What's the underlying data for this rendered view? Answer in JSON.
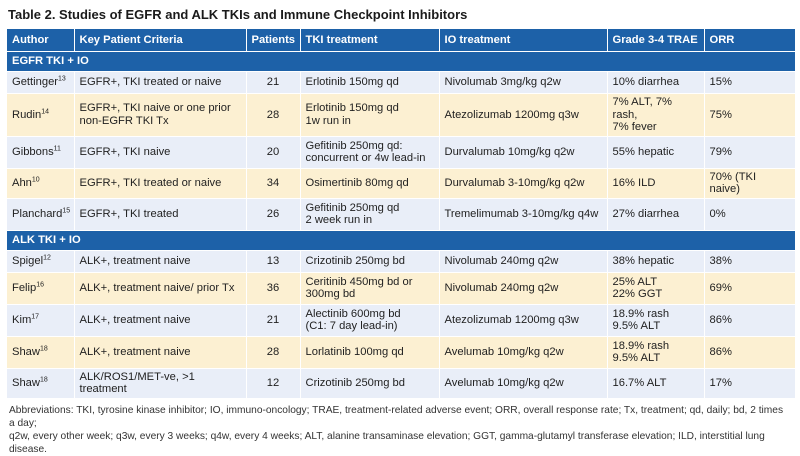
{
  "title": "Table 2. Studies of EGFR and ALK TKIs and Immune Checkpoint Inhibitors",
  "columns": [
    "Author",
    "Key Patient Criteria",
    "Patients",
    "TKI treatment",
    "IO treatment",
    "Grade 3-4 TRAE",
    "ORR"
  ],
  "sections": [
    {
      "label": "EGFR TKI + IO",
      "rows": [
        {
          "author": "Gettinger",
          "ref": "13",
          "criteria": [
            "EGFR+, TKI treated or naive"
          ],
          "patients": "21",
          "tki": [
            "Erlotinib 150mg qd"
          ],
          "io": "Nivolumab 3mg/kg q2w",
          "trae": [
            "10% diarrhea"
          ],
          "orr": "15%"
        },
        {
          "author": "Rudin",
          "ref": "14",
          "criteria": [
            "EGFR+, TKI naive or one prior",
            "non-EGFR TKI Tx"
          ],
          "patients": "28",
          "tki": [
            "Erlotinib 150mg qd",
            "1w run in"
          ],
          "io": "Atezolizumab 1200mg q3w",
          "trae": [
            "7% ALT, 7% rash,",
            "7% fever"
          ],
          "orr": "75%"
        },
        {
          "author": "Gibbons",
          "ref": "11",
          "criteria": [
            "EGFR+, TKI naive"
          ],
          "patients": "20",
          "tki": [
            "Gefitinib 250mg qd:",
            "concurrent or 4w lead-in"
          ],
          "io": "Durvalumab 10mg/kg q2w",
          "trae": [
            "55% hepatic"
          ],
          "orr": "79%"
        },
        {
          "author": "Ahn",
          "ref": "10",
          "criteria": [
            "EGFR+, TKI treated or naive"
          ],
          "patients": "34",
          "tki": [
            "Osimertinib 80mg qd"
          ],
          "io": "Durvalumab 3-10mg/kg q2w",
          "trae": [
            "16% ILD"
          ],
          "orr": "70% (TKI naive)"
        },
        {
          "author": "Planchard",
          "ref": "15",
          "criteria": [
            "EGFR+, TKI treated"
          ],
          "patients": "26",
          "tki": [
            "Gefitinib 250mg qd",
            "2 week run in"
          ],
          "io": "Tremelimumab 3-10mg/kg q4w",
          "trae": [
            "27% diarrhea"
          ],
          "orr": "0%"
        }
      ]
    },
    {
      "label": "ALK TKI + IO",
      "rows": [
        {
          "author": "Spigel",
          "ref": "12",
          "criteria": [
            "ALK+, treatment naive"
          ],
          "patients": "13",
          "tki": [
            "Crizotinib 250mg bd"
          ],
          "io": "Nivolumab 240mg q2w",
          "trae": [
            "38% hepatic"
          ],
          "orr": "38%"
        },
        {
          "author": "Felip",
          "ref": "16",
          "criteria": [
            "ALK+, treatment naive/ prior Tx"
          ],
          "patients": "36",
          "tki": [
            "Ceritinib 450mg bd or",
            "300mg bd"
          ],
          "io": "Nivolumab 240mg q2w",
          "trae": [
            "25% ALT",
            "22% GGT"
          ],
          "orr": "69%"
        },
        {
          "author": "Kim",
          "ref": "17",
          "criteria": [
            "ALK+, treatment naive"
          ],
          "patients": "21",
          "tki": [
            "Alectinib 600mg bd",
            "(C1: 7 day lead-in)"
          ],
          "io": "Atezolizumab 1200mg q3w",
          "trae": [
            "18.9% rash",
            "9.5% ALT"
          ],
          "orr": "86%"
        },
        {
          "author": "Shaw",
          "ref": "18",
          "criteria": [
            "ALK+, treatment naive"
          ],
          "patients": "28",
          "tki": [
            "Lorlatinib 100mg qd"
          ],
          "io": "Avelumab 10mg/kg q2w",
          "trae": [
            "18.9% rash",
            "9.5% ALT"
          ],
          "orr": "86%"
        },
        {
          "author": "Shaw",
          "ref": "18",
          "criteria": [
            "ALK/ROS1/MET-ve, >1 treatment"
          ],
          "patients": "12",
          "tki": [
            "Crizotinib 250mg bd"
          ],
          "io": "Avelumab 10mg/kg q2w",
          "trae": [
            "16.7% ALT"
          ],
          "orr": "17%"
        }
      ]
    }
  ],
  "footnote": [
    "Abbreviations: TKI, tyrosine kinase inhibitor; IO, immuno-oncology; TRAE, treatment-related adverse event; ORR, overall response rate; Tx, treatment; qd, daily; bd, 2 times a day;",
    "q2w, every other week; q3w, every 3 weeks; q4w, every 4 weeks; ALT, alanine transaminase elevation; GGT, gamma-glutamyl transferase elevation; ILD, interstitial lung disease."
  ],
  "colors": {
    "header_bg": "#1d61a8",
    "row_blue": "#e9eef8",
    "row_yellow": "#fcf0d2"
  }
}
